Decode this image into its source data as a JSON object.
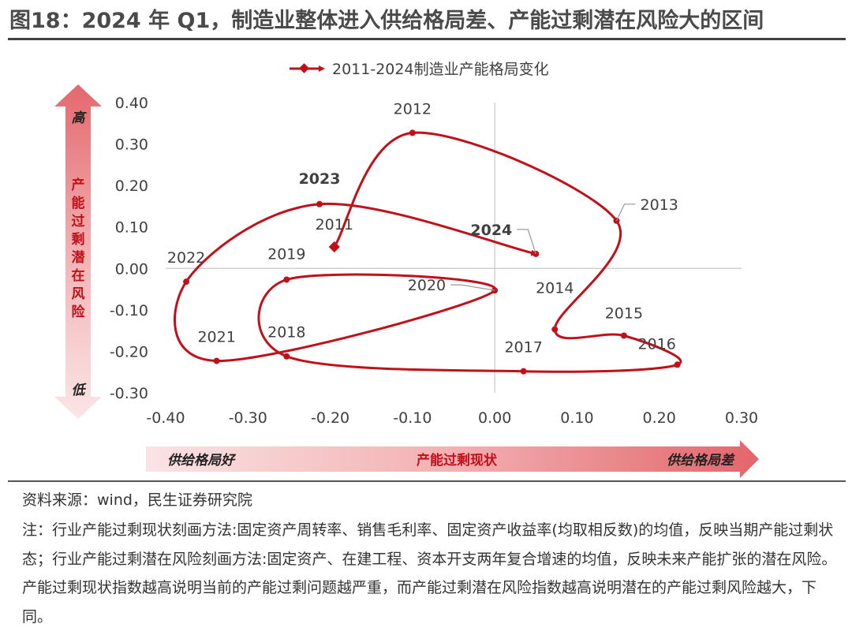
{
  "title": "图18：2024 年 Q1，制造业整体进入供给格局差、产能过剩潜在风险大的区间",
  "legend_label": "2011-2024制造业产能格局变化",
  "y_axis": {
    "high": "高",
    "low": "低",
    "label": "产能过剩潜在风险"
  },
  "x_axis": {
    "left": "供给格局好",
    "center": "产能过剩现状",
    "right": "供给格局差"
  },
  "source": "资料来源：wind，民生证券研究院",
  "note": "注：行业产能过剩现状刻画方法:固定资产周转率、销售毛利率、固定资产收益率(均取相反数)的均值，反映当期产能过剩状态；行业产能过剩潜在风险刻画方法:固定资产、在建工程、资本开支两年复合增速的均值，反映未来产能扩张的潜在风险。产能过剩现状指数越高说明当前的产能过剩问题越严重，而产能过剩潜在风险指数越高说明潜在的产能过剩风险越大，下同。",
  "colors": {
    "series": "#c0111b",
    "axis_arrow": "#e06a6e",
    "text": "#404040"
  },
  "chart_data": {
    "type": "scatter",
    "series": [
      {
        "name": "2011-2024制造业产能格局变化",
        "points": [
          {
            "label": "2011",
            "x": -0.195,
            "y": 0.052
          },
          {
            "label": "2012",
            "x": -0.1,
            "y": 0.327
          },
          {
            "label": "2013",
            "x": 0.148,
            "y": 0.115
          },
          {
            "label": "2014",
            "x": 0.073,
            "y": -0.147
          },
          {
            "label": "2015",
            "x": 0.157,
            "y": -0.162
          },
          {
            "label": "2016",
            "x": 0.222,
            "y": -0.232
          },
          {
            "label": "2017",
            "x": 0.035,
            "y": -0.248
          },
          {
            "label": "2018",
            "x": -0.253,
            "y": -0.212
          },
          {
            "label": "2019",
            "x": -0.253,
            "y": -0.027
          },
          {
            "label": "2020",
            "x": 0.0,
            "y": -0.053
          },
          {
            "label": "2021",
            "x": -0.338,
            "y": -0.223
          },
          {
            "label": "2022",
            "x": -0.375,
            "y": -0.032
          },
          {
            "label": "2023",
            "x": -0.213,
            "y": 0.155
          },
          {
            "label": "2024",
            "x": 0.05,
            "y": 0.035
          }
        ]
      }
    ],
    "xlim": [
      -0.4,
      0.3
    ],
    "ylim": [
      -0.3,
      0.4
    ],
    "x_ticks": [
      "-0.40",
      "-0.30",
      "-0.20",
      "-0.10",
      "0.00",
      "0.10",
      "0.20",
      "0.30"
    ],
    "y_ticks": [
      "0.40",
      "0.30",
      "0.20",
      "0.10",
      "0.00",
      "-0.10",
      "-0.20",
      "-0.30"
    ],
    "bold_labels": [
      "2023",
      "2024"
    ]
  }
}
